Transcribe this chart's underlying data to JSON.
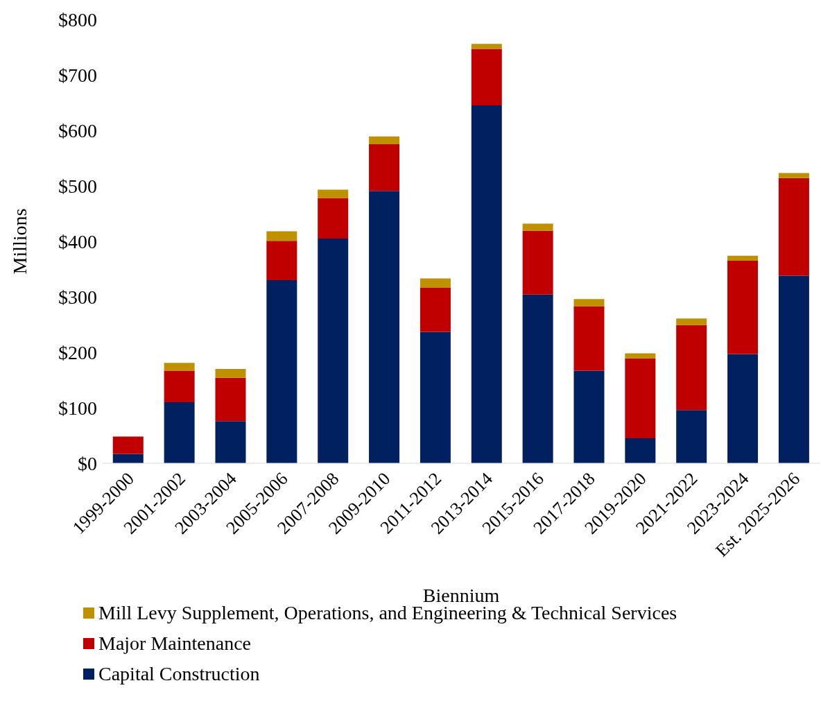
{
  "chart_data": {
    "type": "bar",
    "stacked": true,
    "xlabel": "Biennium",
    "ylabel": "Millions",
    "categories": [
      "1999-2000",
      "2001-2002",
      "2003-2004",
      "2005-2006",
      "2007-2008",
      "2009-2010",
      "2011-2012",
      "2013-2014",
      "2015-2016",
      "2017-2018",
      "2019-2020",
      "2021-2022",
      "2023-2024",
      "Est. 2025-2026"
    ],
    "series": [
      {
        "name": "Capital Construction",
        "color": "#002060",
        "values": [
          17,
          110,
          76,
          330,
          405,
          491,
          237,
          645,
          304,
          167,
          45,
          96,
          197,
          338
        ]
      },
      {
        "name": "Major Maintenance",
        "color": "#c00000",
        "values": [
          31,
          57,
          78,
          71,
          73,
          84,
          80,
          102,
          115,
          116,
          144,
          153,
          168,
          176
        ]
      },
      {
        "name": "Mill Levy Supplement, Operations, and Engineering & Technical Services",
        "color": "#bf9000",
        "values": [
          0,
          14,
          16,
          17,
          15,
          14,
          16,
          9,
          13,
          13,
          9,
          12,
          9,
          9
        ]
      }
    ],
    "ylim": [
      0,
      800
    ],
    "yticks": [
      {
        "value": 0,
        "label": "$0"
      },
      {
        "value": 100,
        "label": "$100"
      },
      {
        "value": 200,
        "label": "$200"
      },
      {
        "value": 300,
        "label": "$300"
      },
      {
        "value": 400,
        "label": "$400"
      },
      {
        "value": 500,
        "label": "$500"
      },
      {
        "value": 600,
        "label": "$600"
      },
      {
        "value": 700,
        "label": "$700"
      },
      {
        "value": 800,
        "label": "$800"
      }
    ],
    "grid": false,
    "legend": "bottom"
  }
}
